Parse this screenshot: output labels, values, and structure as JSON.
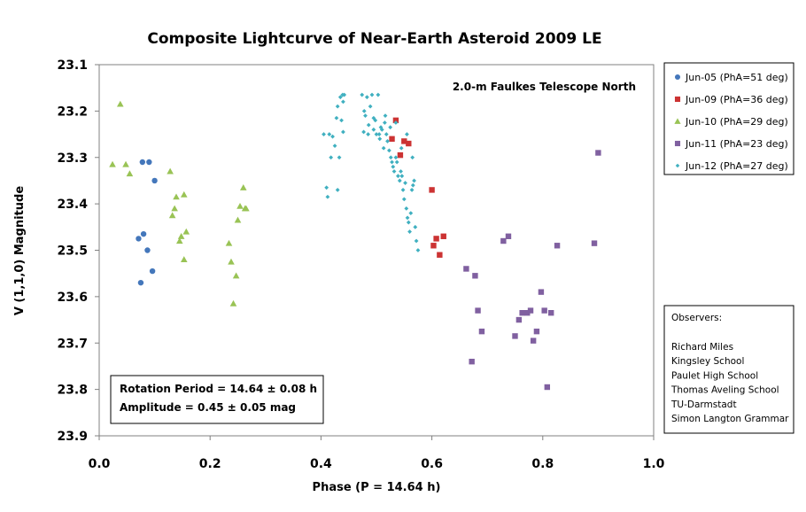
{
  "chart_data": {
    "type": "scatter",
    "title": "Composite Lightcurve of Near-Earth Asteroid  2009 LE",
    "xlabel": "Phase  (P = 14.64 h)",
    "ylabel": "V (1,1,0) Magnitude",
    "xlim": [
      0,
      1
    ],
    "ylim": [
      23.1,
      23.9
    ],
    "y_inverted": true,
    "x_ticks": [
      "0.0",
      "0.2",
      "0.4",
      "0.6",
      "0.8",
      "1.0"
    ],
    "y_ticks": [
      "23.1",
      "23.2",
      "23.3",
      "23.4",
      "23.5",
      "23.6",
      "23.7",
      "23.8",
      "23.9"
    ],
    "grid": false,
    "legend_position": "right",
    "telescope_label": "2.0-m Faulkes Telescope North",
    "result_box": {
      "period": "Rotation Period = 14.64 ± 0.08 h",
      "amplitude": "Amplitude = 0.45 ± 0.05 mag"
    },
    "observers": {
      "heading": "Observers:",
      "names": [
        "Richard Miles",
        "Kingsley School",
        "Paulet High School",
        "Thomas Aveling School",
        "TU-Darmstadt",
        "Simon Langton Grammar"
      ]
    },
    "series": [
      {
        "name": "Jun-05  (PhA=51 deg)",
        "marker": "circle",
        "color": "#4477bb",
        "x": [
          0.078,
          0.09,
          0.1,
          0.071,
          0.08,
          0.087,
          0.096,
          0.075
        ],
        "y": [
          23.31,
          23.31,
          23.35,
          23.475,
          23.465,
          23.5,
          23.545,
          23.57
        ]
      },
      {
        "name": "Jun-09  (PhA=36 deg)",
        "marker": "square",
        "color": "#cc3333",
        "x": [
          0.535,
          0.528,
          0.543,
          0.55,
          0.558,
          0.6,
          0.603,
          0.608,
          0.614,
          0.621
        ],
        "y": [
          23.22,
          23.26,
          23.295,
          23.265,
          23.27,
          23.37,
          23.49,
          23.475,
          23.51,
          23.47
        ]
      },
      {
        "name": "Jun-10  (PhA=29 deg)",
        "marker": "triangle",
        "color": "#99c355",
        "x": [
          0.038,
          0.024,
          0.048,
          0.055,
          0.128,
          0.132,
          0.136,
          0.139,
          0.145,
          0.148,
          0.153,
          0.157,
          0.153,
          0.234,
          0.238,
          0.242,
          0.247,
          0.25,
          0.254,
          0.26,
          0.265,
          0.263
        ],
        "y": [
          23.185,
          23.315,
          23.315,
          23.335,
          23.33,
          23.425,
          23.41,
          23.385,
          23.48,
          23.47,
          23.38,
          23.46,
          23.52,
          23.485,
          23.525,
          23.615,
          23.555,
          23.435,
          23.405,
          23.365,
          23.41,
          23.41
        ],
        "y_note": ""
      },
      {
        "name": "Jun-11  (PhA=23 deg)",
        "marker": "square",
        "color": "#8060a0",
        "x": [
          0.662,
          0.672,
          0.678,
          0.683,
          0.69,
          0.729,
          0.738,
          0.75,
          0.757,
          0.763,
          0.772,
          0.778,
          0.783,
          0.789,
          0.797,
          0.803,
          0.808,
          0.815,
          0.826,
          0.893,
          0.9
        ],
        "y": [
          23.54,
          23.74,
          23.555,
          23.63,
          23.675,
          23.48,
          23.47,
          23.685,
          23.65,
          23.635,
          23.635,
          23.63,
          23.695,
          23.675,
          23.59,
          23.63,
          23.795,
          23.635,
          23.49,
          23.485,
          23.29
        ]
      },
      {
        "name": "Jun-12  (PhA=27 deg)",
        "marker": "diamond",
        "color": "#40b0c0",
        "x": [
          0.405,
          0.41,
          0.412,
          0.415,
          0.418,
          0.421,
          0.425,
          0.428,
          0.43,
          0.433,
          0.435,
          0.437,
          0.439,
          0.44,
          0.442,
          0.474,
          0.478,
          0.48,
          0.483,
          0.486,
          0.489,
          0.492,
          0.495,
          0.498,
          0.5,
          0.503,
          0.506,
          0.508,
          0.51,
          0.513,
          0.516,
          0.518,
          0.52,
          0.523,
          0.526,
          0.528,
          0.53,
          0.532,
          0.535,
          0.537,
          0.539,
          0.542,
          0.544,
          0.546,
          0.548,
          0.55,
          0.552,
          0.554,
          0.556,
          0.558,
          0.56,
          0.562,
          0.564,
          0.566,
          0.568,
          0.57,
          0.572,
          0.575,
          0.477,
          0.485,
          0.495,
          0.505,
          0.515,
          0.525,
          0.535,
          0.545,
          0.555,
          0.565,
          0.44,
          0.43
        ],
        "y": [
          23.25,
          23.365,
          23.385,
          23.25,
          23.3,
          23.255,
          23.275,
          23.215,
          23.19,
          23.3,
          23.17,
          23.22,
          23.165,
          23.245,
          23.165,
          23.165,
          23.2,
          23.21,
          23.17,
          23.23,
          23.19,
          23.165,
          23.24,
          23.22,
          23.25,
          23.165,
          23.26,
          23.235,
          23.24,
          23.28,
          23.21,
          23.25,
          23.265,
          23.285,
          23.3,
          23.31,
          23.32,
          23.33,
          23.3,
          23.31,
          23.34,
          23.35,
          23.33,
          23.34,
          23.37,
          23.39,
          23.355,
          23.41,
          23.43,
          23.44,
          23.46,
          23.42,
          23.37,
          23.36,
          23.35,
          23.45,
          23.48,
          23.5,
          23.245,
          23.25,
          23.215,
          23.25,
          23.225,
          23.235,
          23.225,
          23.28,
          23.25,
          23.3,
          23.18,
          23.37
        ]
      }
    ]
  }
}
